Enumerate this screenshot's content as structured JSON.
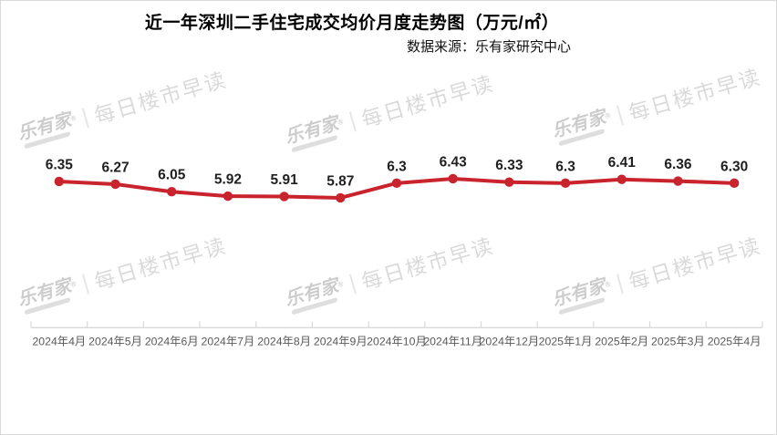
{
  "header": {
    "title": "近一年深圳二手住宅成交均价月度走势图（万元/㎡）",
    "source": "数据来源：乐有家研究中心"
  },
  "watermark": {
    "brand": "乐有家",
    "reg": "®",
    "divider": "|",
    "slogan": "每日楼市早读"
  },
  "chart_data": {
    "type": "line",
    "title": "近一年深圳二手住宅成交均价月度走势图（万元/㎡）",
    "source_note": "数据来源：乐有家研究中心",
    "categories": [
      "2024年4月",
      "2024年5月",
      "2024年6月",
      "2024年7月",
      "2024年8月",
      "2024年9月",
      "2024年10月",
      "2024年11月",
      "2024年12月",
      "2025年1月",
      "2025年2月",
      "2025年3月",
      "2025年4月"
    ],
    "values": [
      6.35,
      6.27,
      6.05,
      5.92,
      5.91,
      5.87,
      6.3,
      6.43,
      6.33,
      6.3,
      6.41,
      6.36,
      6.3
    ],
    "value_labels": [
      "6.35",
      "6.27",
      "6.05",
      "5.92",
      "5.91",
      "5.87",
      "6.3",
      "6.43",
      "6.33",
      "6.3",
      "6.41",
      "6.36",
      "6.30"
    ],
    "ylim_implied": [
      5.7,
      6.6
    ],
    "line_color": "#c9242d",
    "marker": "circle",
    "data_labels": true,
    "data_label_color": "#1f1f1f",
    "grid": false,
    "legend": "none",
    "y_axis": "hidden",
    "x_axis_line_color": "#d9d9d9",
    "x_tick_label_color": "#595959"
  }
}
